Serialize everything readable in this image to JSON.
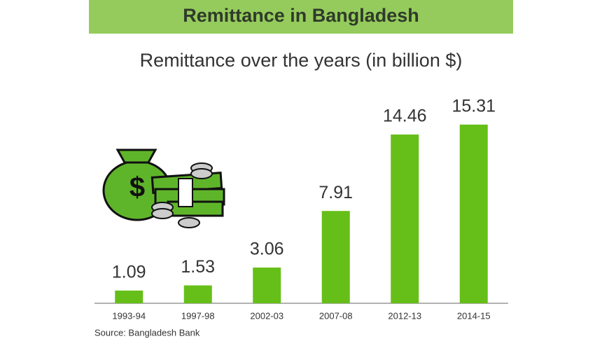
{
  "header": {
    "title": "Remittance in Bangladesh"
  },
  "chart_data": {
    "type": "bar",
    "title": "Remittance over the years (in billion $)",
    "categories": [
      "1993-94",
      "1997-98",
      "2002-03",
      "2007-08",
      "2012-13",
      "2014-15"
    ],
    "values": [
      1.09,
      1.53,
      3.06,
      7.91,
      14.46,
      15.31
    ],
    "color": "#66bf18",
    "ylim": [
      0,
      16
    ],
    "source": "Source: Bangladesh Bank"
  }
}
